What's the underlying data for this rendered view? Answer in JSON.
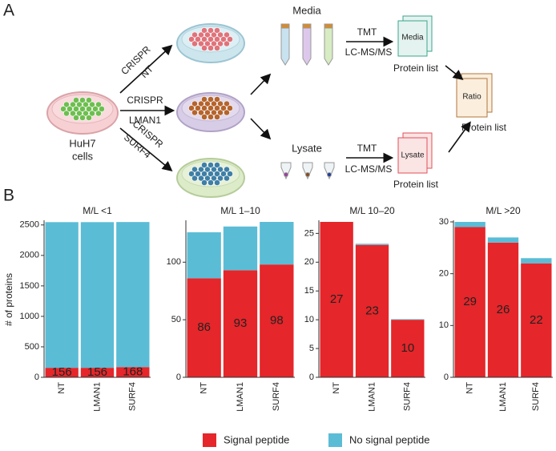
{
  "panel_a": {
    "label": "A",
    "source": [
      "HuH7",
      "cells"
    ],
    "conditions": [
      [
        "CRISPR",
        "NT"
      ],
      [
        "CRISPR",
        "LMAN1"
      ],
      [
        "CRISPR",
        "SURF4"
      ]
    ],
    "media": {
      "name": "Media",
      "method": [
        "TMT",
        "LC-MS/MS"
      ],
      "card": "Media",
      "output": "Protein list"
    },
    "lysate": {
      "name": "Lysate",
      "method": [
        "TMT",
        "LC-MS/MS"
      ],
      "card": "Lysate",
      "output": "Protein list"
    },
    "ratio": {
      "card": "Ratio",
      "output": "Protein list"
    }
  },
  "panel_b": {
    "label": "B"
  },
  "chart_data": [
    {
      "type": "bar",
      "stacked": true,
      "title": "M/L <1",
      "y_label": "# of proteins",
      "categories": [
        "NT",
        "LMAN1",
        "SURF4"
      ],
      "series": [
        {
          "name": "Signal peptide",
          "color": "#e5262a",
          "labels": true,
          "values": [
            156,
            156,
            168
          ]
        },
        {
          "name": "No signal peptide",
          "color": "#5bbcd6",
          "values": [
            2390,
            2390,
            2380
          ]
        }
      ],
      "ylim": [
        0,
        2550
      ],
      "yticks": [
        0,
        500,
        1000,
        1500,
        2000,
        2500
      ]
    },
    {
      "type": "bar",
      "stacked": true,
      "title": "M/L 1–10",
      "categories": [
        "NT",
        "LMAN1",
        "SURF4"
      ],
      "series": [
        {
          "color": "#e5262a",
          "labels": true,
          "values": [
            86,
            93,
            98
          ]
        },
        {
          "color": "#5bbcd6",
          "values": [
            40,
            38,
            37
          ]
        }
      ],
      "ylim": [
        0,
        135
      ],
      "yticks": [
        0,
        50,
        100
      ]
    },
    {
      "type": "bar",
      "stacked": true,
      "title": "M/L 10–20",
      "categories": [
        "NT",
        "LMAN1",
        "SURF4"
      ],
      "series": [
        {
          "color": "#e5262a",
          "labels": true,
          "values": [
            27,
            23,
            10
          ]
        },
        {
          "color": "#5bbcd6",
          "values": [
            0,
            0.2,
            0.1
          ]
        }
      ],
      "ylim": [
        0,
        27
      ],
      "yticks": [
        0,
        5,
        10,
        15,
        20,
        25
      ]
    },
    {
      "type": "bar",
      "stacked": true,
      "title": "M/L >20",
      "categories": [
        "NT",
        "LMAN1",
        "SURF4"
      ],
      "series": [
        {
          "color": "#e5262a",
          "labels": true,
          "values": [
            29,
            26,
            22
          ]
        },
        {
          "color": "#5bbcd6",
          "values": [
            1,
            1,
            1
          ]
        }
      ],
      "ylim": [
        0,
        30
      ],
      "yticks": [
        0,
        10,
        20,
        30
      ]
    }
  ]
}
